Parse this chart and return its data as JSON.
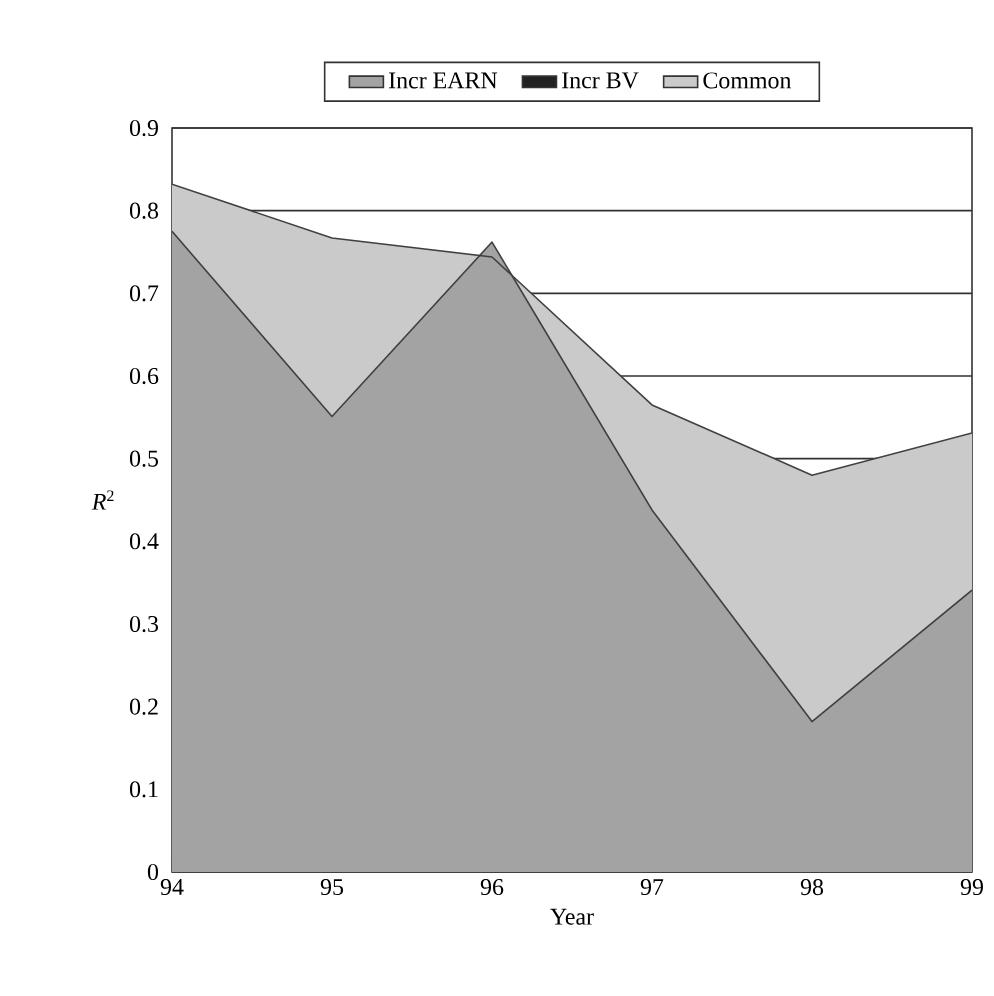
{
  "chart_data": {
    "type": "area",
    "xlabel": "Year",
    "ylabel": "*R*$^{2}$",
    "x": [
      94,
      95,
      96,
      97,
      98,
      99
    ],
    "series": [
      {
        "name": "Incr EARN",
        "color": "#a3a3a3",
        "values": [
          0.775,
          0.551,
          0.762,
          0.438,
          0.182,
          0.341
        ]
      },
      {
        "name": "Incr BV",
        "color": "#222222",
        "values": [
          null,
          null,
          null,
          null,
          null,
          null
        ]
      },
      {
        "name": "Common",
        "color": "#cacaca",
        "values": [
          0.832,
          0.767,
          0.744,
          0.565,
          0.48,
          0.531
        ]
      }
    ],
    "xlim": [
      94,
      99
    ],
    "xticks": [
      94,
      95,
      96,
      97,
      98,
      99
    ],
    "ylim": [
      0,
      0.9
    ],
    "yticks": [
      0,
      0.1,
      0.2,
      0.3,
      0.4,
      0.5,
      0.6,
      0.7,
      0.8,
      0.9
    ],
    "grid": "y",
    "legend": "top"
  }
}
